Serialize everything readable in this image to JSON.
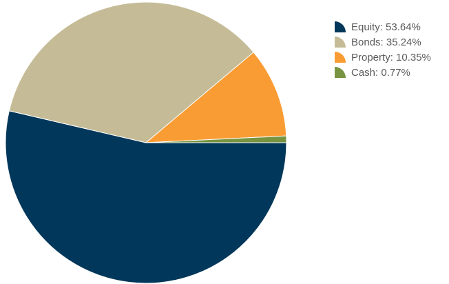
{
  "chart_data": {
    "type": "pie",
    "title": "",
    "legend_position": "top-right",
    "series": [
      {
        "name": "",
        "slices": [
          {
            "label": "Equity",
            "value": 53.64,
            "legend_text": "Equity: 53.64%",
            "color": "#01375a"
          },
          {
            "label": "Bonds",
            "value": 35.24,
            "legend_text": "Bonds: 35.24%",
            "color": "#c5bc97"
          },
          {
            "label": "Property",
            "value": 10.35,
            "legend_text": "Property: 10.35%",
            "color": "#fa9c34"
          },
          {
            "label": "Cash",
            "value": 0.77,
            "legend_text": "Cash: 0.77%",
            "color": "#789440"
          }
        ]
      }
    ]
  }
}
